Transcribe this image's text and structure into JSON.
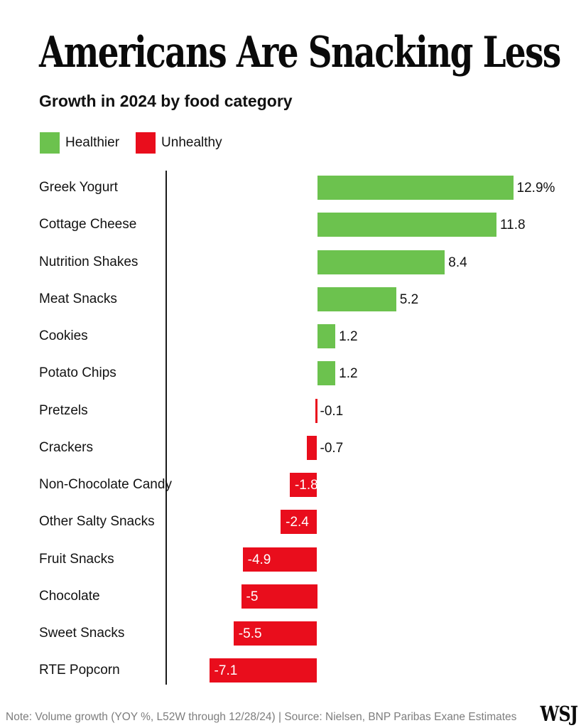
{
  "header": {
    "title": "Americans Are Snacking Less",
    "subtitle": "Growth in 2024 by food category"
  },
  "legend": [
    {
      "label": "Healthier",
      "color": "#6cc24e"
    },
    {
      "label": "Unhealthy",
      "color": "#e90d1c"
    }
  ],
  "chart_data": {
    "type": "bar",
    "orientation": "horizontal",
    "title": "Americans Are Snacking Less",
    "subtitle": "Growth in 2024 by food category",
    "xlabel": "",
    "ylabel": "",
    "grid": false,
    "legend_position": "top-left",
    "xlim": [
      -9.9,
      17.4
    ],
    "categories": [
      "Greek Yogurt",
      "Cottage Cheese",
      "Nutrition Shakes",
      "Meat Snacks",
      "Cookies",
      "Potato Chips",
      "Pretzels",
      "Crackers",
      "Non-Chocolate Candy",
      "Other Salty Snacks",
      "Fruit Snacks",
      "Chocolate",
      "Sweet Snacks",
      "RTE Popcorn"
    ],
    "values": [
      12.9,
      11.8,
      8.4,
      5.2,
      1.2,
      1.2,
      -0.1,
      -0.7,
      -1.8,
      -2.4,
      -4.9,
      -5,
      -5.5,
      -7.1
    ],
    "value_labels": [
      "12.9%",
      "11.8",
      "8.4",
      "5.2",
      "1.2",
      "1.2",
      "-0.1",
      "-0.7",
      "-1.8",
      "-2.4",
      "-4.9",
      "-5",
      "-5.5",
      "-7.1"
    ],
    "series_colors": {
      "positive": "#6cc24e",
      "negative": "#e90d1c"
    }
  },
  "footer": {
    "note": "Note: Volume growth (YOY %, L52W through 12/28/24) | Source: Nielsen, BNP Paribas Exane Estimates",
    "logo": "WSJ"
  }
}
